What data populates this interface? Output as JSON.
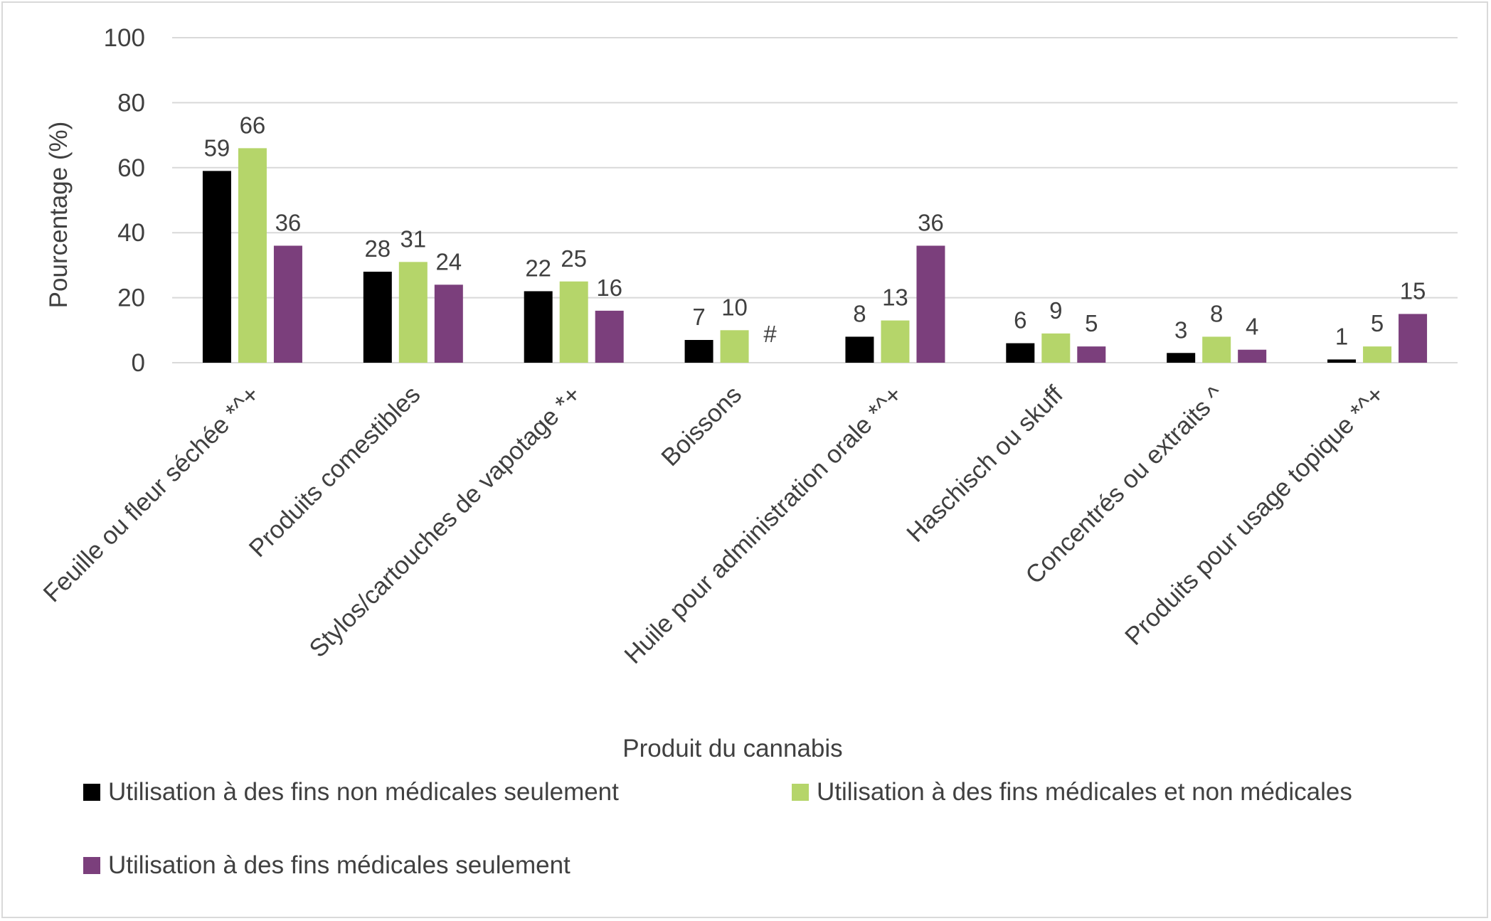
{
  "chart_data": {
    "type": "bar",
    "title": "",
    "xlabel": "Produit du cannabis",
    "ylabel": "Pourcentage (%)",
    "ylim": [
      0,
      100
    ],
    "yticks": [
      "0",
      "20",
      "40",
      "60",
      "80",
      "100"
    ],
    "grid": true,
    "legend_position": "bottom",
    "categories": [
      "Feuille ou fleur séchée *^+",
      "Produits comestibles",
      "Stylos/cartouches de vapotage *+",
      "Boissons",
      "Huile pour administration orale *^+",
      "Haschisch ou skuff",
      "Concentrés ou extraits ^",
      "Produits pour usage topique *^+"
    ],
    "series": [
      {
        "name": "Utilisation à des fins non médicales seulement",
        "color": "#000000",
        "values": [
          59,
          28,
          22,
          7,
          8,
          6,
          3,
          1
        ],
        "labels": [
          "59",
          "28",
          "22",
          "7",
          "8",
          "6",
          "3",
          "1"
        ]
      },
      {
        "name": "Utilisation à des fins médicales et non médicales",
        "color": "#b5d56a",
        "values": [
          66,
          31,
          25,
          10,
          13,
          9,
          8,
          5
        ],
        "labels": [
          "66",
          "31",
          "25",
          "10",
          "13",
          "9",
          "8",
          "5"
        ]
      },
      {
        "name": "Utilisation à des fins médicales seulement",
        "color": "#7b3f7c",
        "values": [
          36,
          24,
          16,
          null,
          36,
          5,
          4,
          15
        ],
        "labels": [
          "36",
          "24",
          "16",
          "#",
          "36",
          "5",
          "4",
          "15"
        ]
      }
    ]
  }
}
